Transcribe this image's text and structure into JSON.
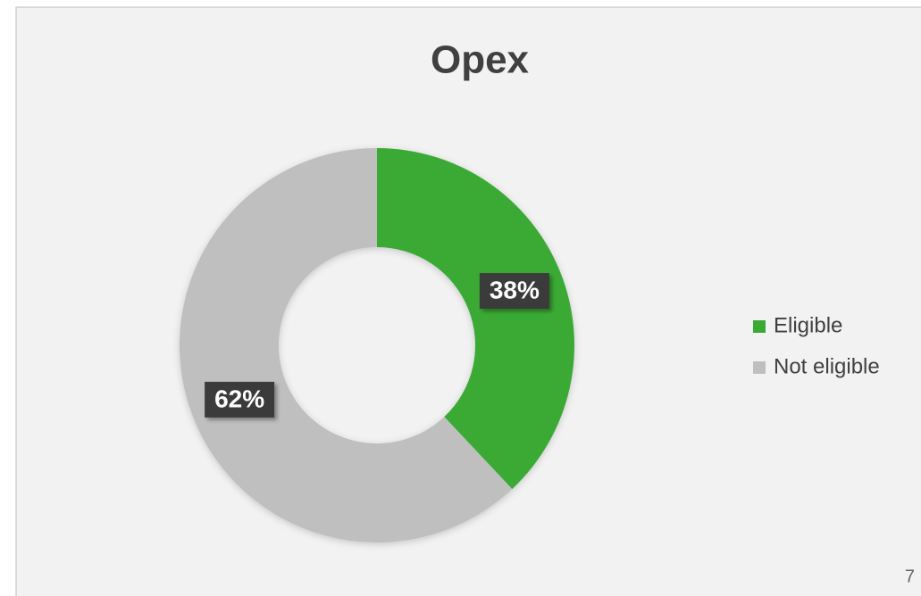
{
  "chart_data": {
    "type": "pie",
    "donut": true,
    "title": "Opex",
    "categories": [
      "Eligible",
      "Not eligible"
    ],
    "values": [
      38,
      62
    ],
    "value_labels": [
      "38%",
      "62%"
    ],
    "colors": [
      "#3aaa35",
      "#bfbfbf"
    ],
    "legend": "right"
  },
  "page_number": "7"
}
